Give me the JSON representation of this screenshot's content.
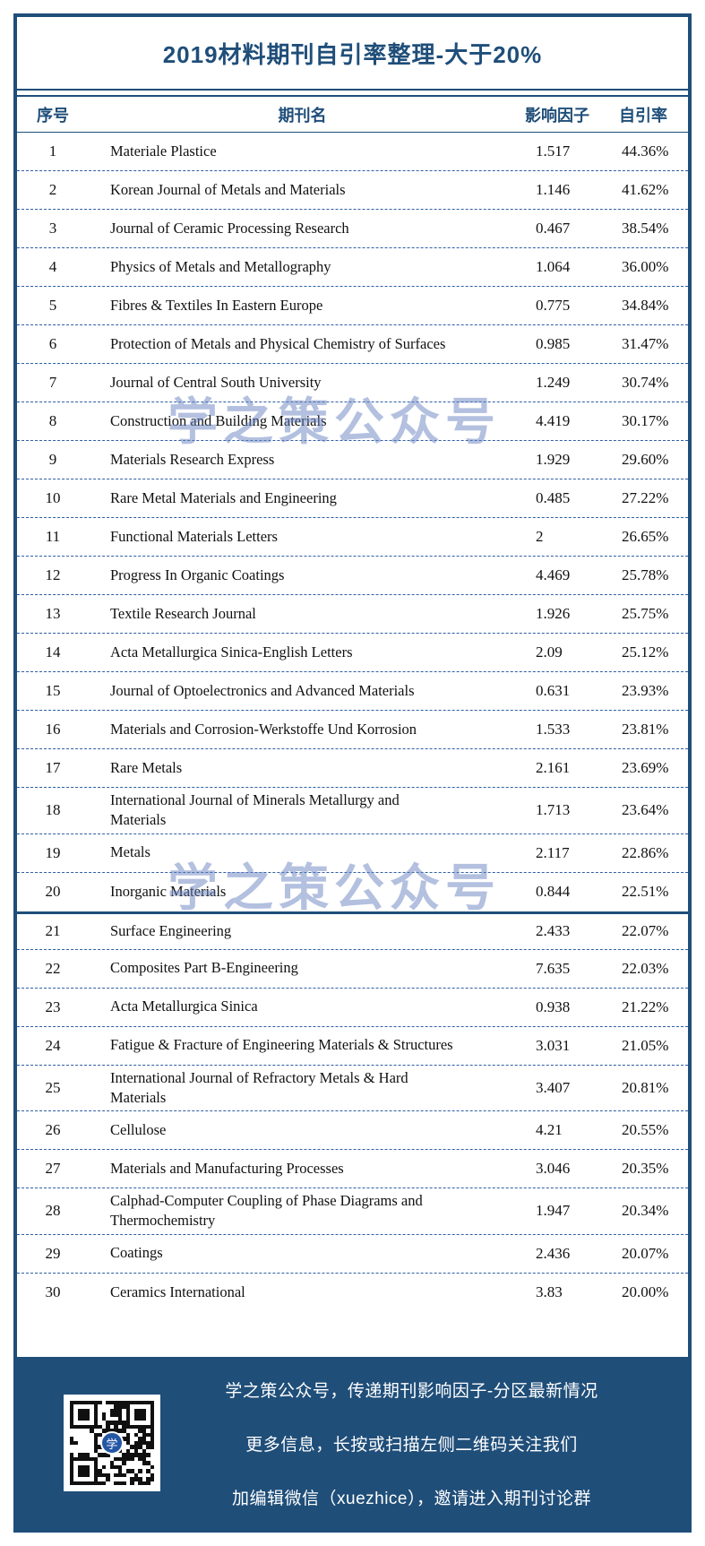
{
  "title": "2019材料期刊自引率整理-大于20%",
  "watermark": "学之策公众号",
  "colors": {
    "accent": "#1F4E79",
    "dashed_divider": "#2E5FA3",
    "footer_background": "#1F4E79",
    "watermark": "rgba(104,130,192,0.5)"
  },
  "table": {
    "headers": [
      "序号",
      "期刊名",
      "影响因子",
      "自引率"
    ],
    "rows": [
      {
        "no": "1",
        "journal": "Materiale Plastice",
        "impact_factor": "1.517",
        "self_cite_rate": "44.36%"
      },
      {
        "no": "2",
        "journal": "Korean Journal of Metals and Materials",
        "impact_factor": "1.146",
        "self_cite_rate": "41.62%"
      },
      {
        "no": "3",
        "journal": "Journal of Ceramic Processing Research",
        "impact_factor": "0.467",
        "self_cite_rate": "38.54%"
      },
      {
        "no": "4",
        "journal": "Physics of Metals and Metallography",
        "impact_factor": "1.064",
        "self_cite_rate": "36.00%"
      },
      {
        "no": "5",
        "journal": "Fibres & Textiles In Eastern Europe",
        "impact_factor": "0.775",
        "self_cite_rate": "34.84%"
      },
      {
        "no": "6",
        "journal": "Protection of Metals and Physical Chemistry of Surfaces",
        "impact_factor": "0.985",
        "self_cite_rate": "31.47%"
      },
      {
        "no": "7",
        "journal": "Journal of Central South University",
        "impact_factor": "1.249",
        "self_cite_rate": "30.74%"
      },
      {
        "no": "8",
        "journal": "Construction and Building Materials",
        "impact_factor": "4.419",
        "self_cite_rate": "30.17%"
      },
      {
        "no": "9",
        "journal": "Materials Research Express",
        "impact_factor": "1.929",
        "self_cite_rate": "29.60%"
      },
      {
        "no": "10",
        "journal": "Rare Metal Materials and Engineering",
        "impact_factor": "0.485",
        "self_cite_rate": "27.22%"
      },
      {
        "no": "11",
        "journal": "Functional Materials Letters",
        "impact_factor": "2",
        "self_cite_rate": "26.65%"
      },
      {
        "no": "12",
        "journal": "Progress In Organic Coatings",
        "impact_factor": "4.469",
        "self_cite_rate": "25.78%"
      },
      {
        "no": "13",
        "journal": "Textile Research Journal",
        "impact_factor": "1.926",
        "self_cite_rate": "25.75%"
      },
      {
        "no": "14",
        "journal": "Acta Metallurgica Sinica-English Letters",
        "impact_factor": "2.09",
        "self_cite_rate": "25.12%"
      },
      {
        "no": "15",
        "journal": "Journal of Optoelectronics and Advanced Materials",
        "impact_factor": "0.631",
        "self_cite_rate": "23.93%"
      },
      {
        "no": "16",
        "journal": "Materials and Corrosion-Werkstoffe Und Korrosion",
        "impact_factor": "1.533",
        "self_cite_rate": "23.81%"
      },
      {
        "no": "17",
        "journal": "Rare Metals",
        "impact_factor": "2.161",
        "self_cite_rate": "23.69%"
      },
      {
        "no": "18",
        "journal": "International Journal of Minerals Metallurgy and\nMaterials",
        "impact_factor": "1.713",
        "self_cite_rate": "23.64%"
      },
      {
        "no": "19",
        "journal": "Metals",
        "impact_factor": "2.117",
        "self_cite_rate": "22.86%"
      },
      {
        "no": "20",
        "journal": "Inorganic Materials",
        "impact_factor": "0.844",
        "self_cite_rate": "22.51%"
      },
      {
        "no": "21",
        "journal": "Surface Engineering",
        "impact_factor": "2.433",
        "self_cite_rate": "22.07%"
      },
      {
        "no": "22",
        "journal": "Composites Part B-Engineering",
        "impact_factor": "7.635",
        "self_cite_rate": "22.03%"
      },
      {
        "no": "23",
        "journal": "Acta Metallurgica Sinica",
        "impact_factor": "0.938",
        "self_cite_rate": "21.22%"
      },
      {
        "no": "24",
        "journal": "Fatigue & Fracture of Engineering Materials & Structures",
        "impact_factor": "3.031",
        "self_cite_rate": "21.05%"
      },
      {
        "no": "25",
        "journal": "International Journal of Refractory Metals & Hard\nMaterials",
        "impact_factor": "3.407",
        "self_cite_rate": "20.81%"
      },
      {
        "no": "26",
        "journal": "Cellulose",
        "impact_factor": "4.21",
        "self_cite_rate": "20.55%"
      },
      {
        "no": "27",
        "journal": "Materials and Manufacturing Processes",
        "impact_factor": "3.046",
        "self_cite_rate": "20.35%"
      },
      {
        "no": "28",
        "journal": "Calphad-Computer Coupling of Phase Diagrams and\nThermochemistry",
        "impact_factor": "1.947",
        "self_cite_rate": "20.34%"
      },
      {
        "no": "29",
        "journal": "Coatings",
        "impact_factor": "2.436",
        "self_cite_rate": "20.07%"
      },
      {
        "no": "30",
        "journal": "Ceramics International",
        "impact_factor": "3.83",
        "self_cite_rate": "20.00%"
      }
    ]
  },
  "footer": {
    "lines": [
      "学之策公众号，传递期刊影响因子-分区最新情况",
      "更多信息，长按或扫描左侧二维码关注我们",
      "加编辑微信（xuezhice），邀请进入期刊讨论群"
    ],
    "qr_logo_char": "学"
  }
}
